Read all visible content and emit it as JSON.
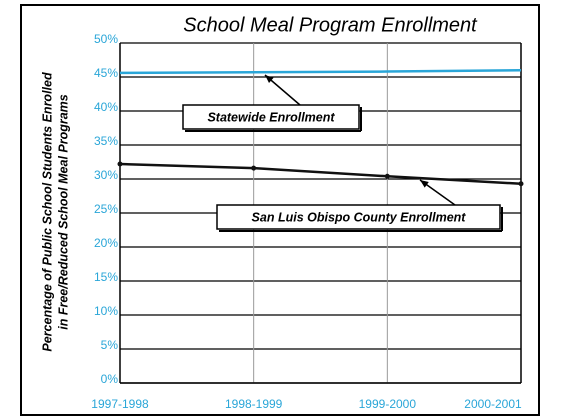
{
  "chart_data": {
    "type": "line",
    "title": "School Meal Program Enrollment",
    "ylabel": [
      "Percentage of Public School Students Enrolled",
      "in Free/Reduced School Meal Programs"
    ],
    "categories": [
      "1997-1998",
      "1998-1999",
      "1999-2000",
      "2000-2001"
    ],
    "series": [
      {
        "name": "Statewide Enrollment",
        "color": "#2aa6d8",
        "markers": false,
        "values": [
          45.6,
          45.7,
          45.8,
          46.0
        ]
      },
      {
        "name": "San Luis Obispo County Enrollment",
        "color": "#111111",
        "markers": true,
        "values": [
          32.2,
          31.6,
          30.4,
          29.3
        ]
      }
    ],
    "ylim": [
      0,
      50
    ],
    "yticks": [
      {
        "value": 0,
        "label": "0%"
      },
      {
        "value": 5,
        "label": "5%"
      },
      {
        "value": 10,
        "label": "10%"
      },
      {
        "value": 15,
        "label": "15%"
      },
      {
        "value": 20,
        "label": "20%"
      },
      {
        "value": 25,
        "label": "25%"
      },
      {
        "value": 30,
        "label": "30%"
      },
      {
        "value": 35,
        "label": "35%"
      },
      {
        "value": 40,
        "label": "40%"
      },
      {
        "value": 45,
        "label": "45%"
      },
      {
        "value": 50,
        "label": "50%"
      }
    ],
    "grid": true,
    "tick_color": "#2aa6d8"
  }
}
